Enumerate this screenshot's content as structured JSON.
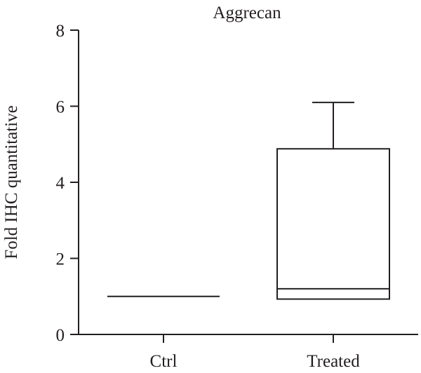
{
  "chart_data": {
    "type": "box",
    "title": "Aggrecan",
    "xlabel": "",
    "ylabel": "Fold IHC quantitative",
    "ylim": [
      0,
      8
    ],
    "yticks": [
      "0",
      "2",
      "4",
      "6",
      "8"
    ],
    "categories": [
      "Ctrl",
      "Treated"
    ],
    "boxes": [
      {
        "category": "Ctrl",
        "min": 1.0,
        "q1": 1.0,
        "median": 1.0,
        "q3": 1.0,
        "max": 1.0
      },
      {
        "category": "Treated",
        "min": 0.93,
        "q1": 0.93,
        "median": 1.2,
        "q3": 4.88,
        "max": 6.1
      }
    ],
    "grid": false,
    "legend": "none",
    "colors": {
      "ink": "#231f20",
      "background": "#ffffff"
    }
  }
}
